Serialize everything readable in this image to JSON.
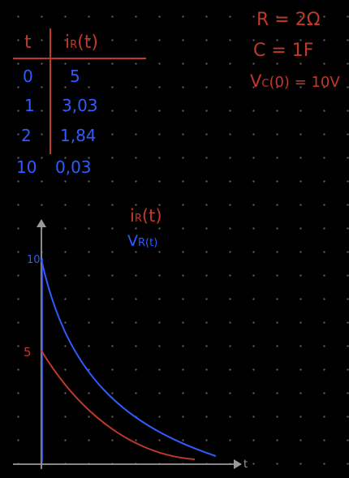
{
  "table": {
    "header_t": "t",
    "header_i": "i",
    "header_i_sub": "R",
    "header_i_arg": "(t)",
    "rows": [
      {
        "t": "0",
        "i": "5"
      },
      {
        "t": "1",
        "i": "3,03"
      },
      {
        "t": "2",
        "i": "1,84"
      },
      {
        "t": "10",
        "i": "0,03"
      }
    ]
  },
  "params": {
    "r": "R = 2Ω",
    "c": "C = 1F",
    "vc_main": "V",
    "vc_sub": "C",
    "vc_rest": "(0) = 10V"
  },
  "graph": {
    "label_i": "i",
    "label_i_sub": "R",
    "label_i_arg": "(t)",
    "label_v": "V",
    "label_v_sub": "R(t)",
    "y_tick_10": "10",
    "y_tick_5": "5",
    "x_axis_label": "t",
    "colors": {
      "red": "#c0392b",
      "blue": "#2f5bff",
      "axis": "#9a9a9a"
    }
  }
}
